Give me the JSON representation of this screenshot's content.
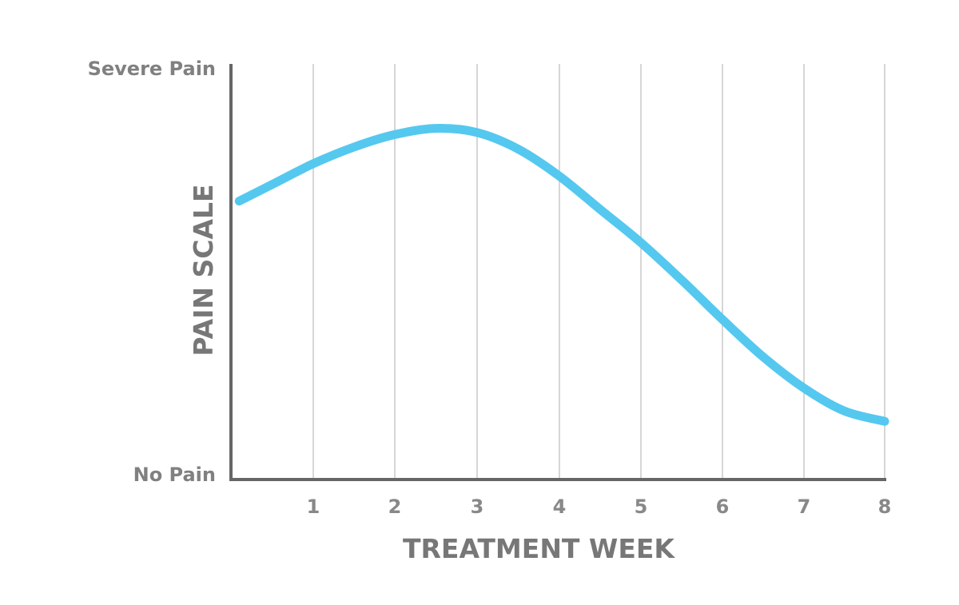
{
  "chart_data": {
    "type": "line",
    "title": "",
    "xlabel": "TREATMENT WEEK",
    "ylabel": "PAIN SCALE",
    "x_ticks": [
      "1",
      "2",
      "3",
      "4",
      "5",
      "6",
      "7",
      "8"
    ],
    "y_labels": {
      "top": "Severe Pain",
      "bottom": "No Pain"
    },
    "xlim": [
      0,
      8
    ],
    "ylim": [
      0,
      100
    ],
    "grid": {
      "vertical": true,
      "horizontal": false
    },
    "series": [
      {
        "x": [
          0.1,
          0.5,
          1,
          1.5,
          2,
          2.5,
          3,
          3.5,
          4,
          4.5,
          5,
          5.5,
          6,
          6.5,
          7,
          7.5,
          8
        ],
        "y": [
          67,
          71,
          76,
          80,
          83,
          84.5,
          83.5,
          79.5,
          73,
          65,
          57,
          48,
          38.5,
          29.5,
          22,
          16.5,
          14
        ]
      }
    ],
    "colors": {
      "line": "#55c8ef",
      "axis": "#666666",
      "grid": "#bbbbbb"
    }
  }
}
